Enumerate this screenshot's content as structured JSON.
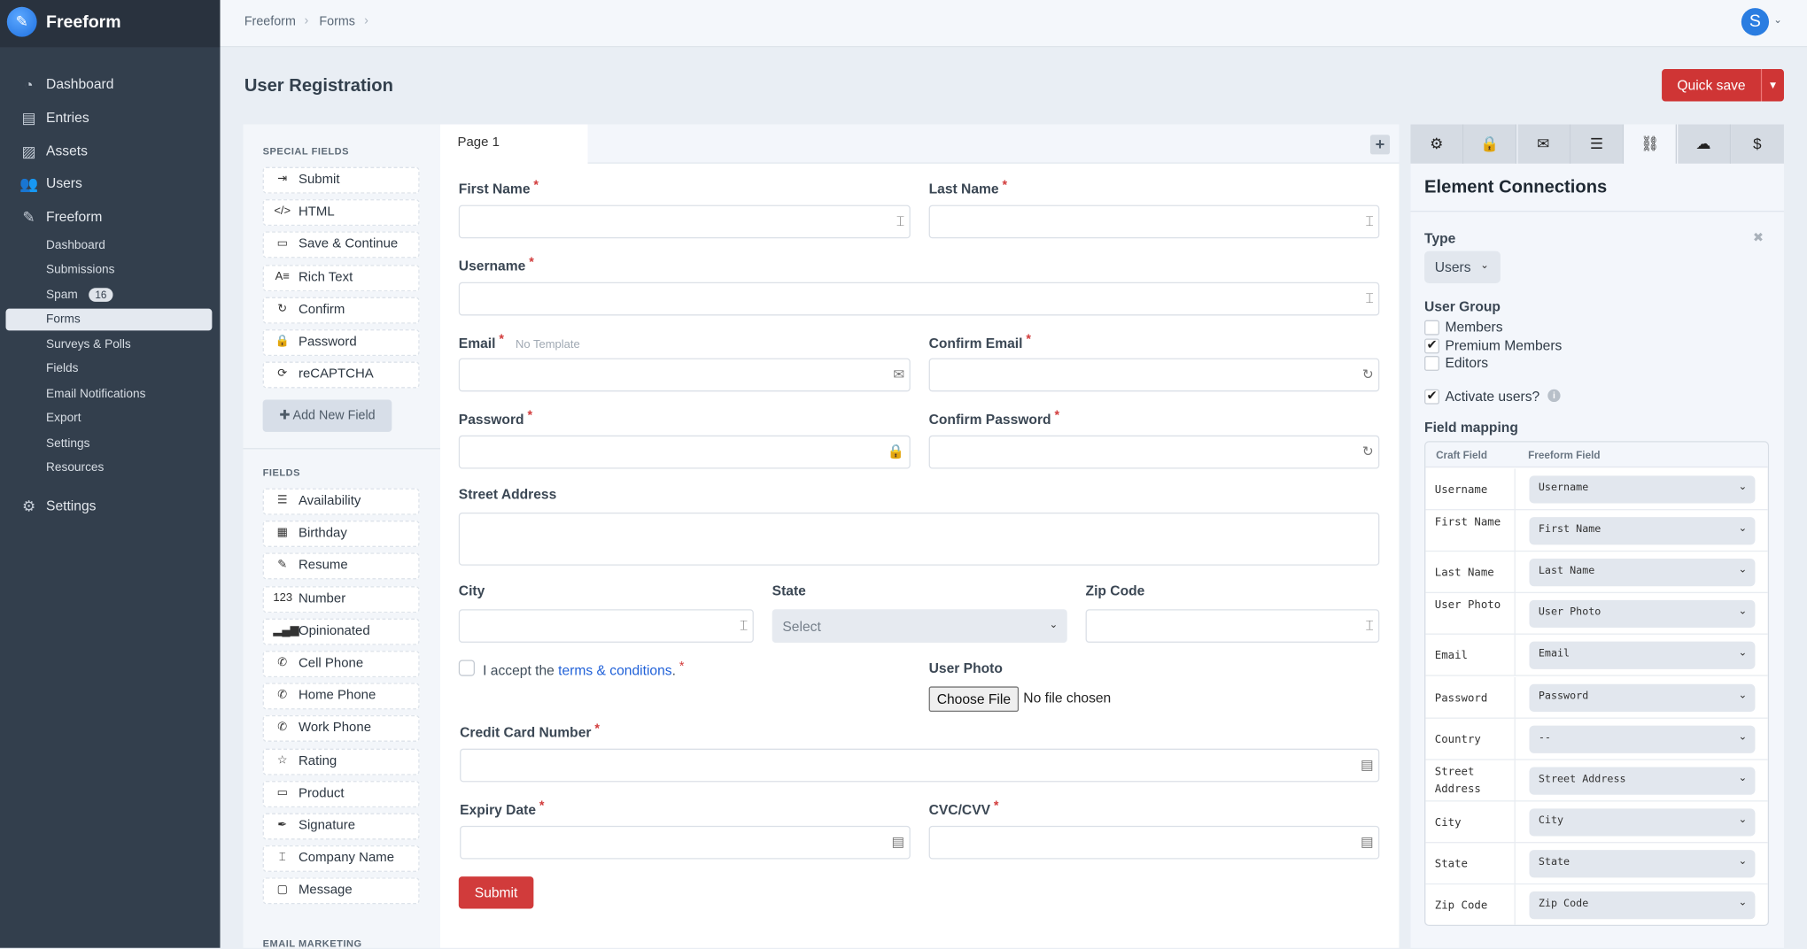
{
  "sidebar": {
    "brand": "Freeform",
    "nav": [
      {
        "label": "Dashboard",
        "icon": "dashboard-icon"
      },
      {
        "label": "Entries",
        "icon": "entries-icon"
      },
      {
        "label": "Assets",
        "icon": "assets-icon"
      },
      {
        "label": "Users",
        "icon": "users-icon"
      },
      {
        "label": "Freeform",
        "icon": "freeform-icon"
      }
    ],
    "sub": [
      "Dashboard",
      "Submissions",
      "Spam",
      "Forms",
      "Surveys & Polls",
      "Fields",
      "Email Notifications",
      "Export",
      "Settings",
      "Resources"
    ],
    "spam_count": "16",
    "active_sub": "Forms",
    "settings": "Settings"
  },
  "topbar": {
    "breadcrumb": [
      "Freeform",
      "Forms"
    ],
    "avatar_letter": "S"
  },
  "header": {
    "title": "User Registration",
    "quick_save": "Quick save"
  },
  "palette": {
    "special_title": "SPECIAL FIELDS",
    "special": [
      {
        "label": "Submit",
        "icon": "submit-icon",
        "glyph": "⇥"
      },
      {
        "label": "HTML",
        "icon": "code-icon",
        "glyph": "</>"
      },
      {
        "label": "Save & Continue",
        "icon": "save-icon",
        "glyph": "▭"
      },
      {
        "label": "Rich Text",
        "icon": "rich-text-icon",
        "glyph": "A≡"
      },
      {
        "label": "Confirm",
        "icon": "confirm-icon",
        "glyph": "↻"
      },
      {
        "label": "Password",
        "icon": "lock-icon",
        "glyph": "🔒"
      },
      {
        "label": "reCAPTCHA",
        "icon": "recaptcha-icon",
        "glyph": "⟳"
      }
    ],
    "add_field": "Add New Field",
    "fields_title": "FIELDS",
    "fields": [
      {
        "label": "Availability",
        "icon": "availability-icon",
        "glyph": "☰"
      },
      {
        "label": "Birthday",
        "icon": "calendar-icon",
        "glyph": "▦"
      },
      {
        "label": "Resume",
        "icon": "file-upload-icon",
        "glyph": "✎"
      },
      {
        "label": "Number",
        "icon": "number-icon",
        "glyph": "123"
      },
      {
        "label": "Opinionated",
        "icon": "bar-chart-icon",
        "glyph": "▂▄▆"
      },
      {
        "label": "Cell Phone",
        "icon": "phone-icon",
        "glyph": "✆"
      },
      {
        "label": "Home Phone",
        "icon": "phone-icon",
        "glyph": "✆"
      },
      {
        "label": "Work Phone",
        "icon": "phone-icon",
        "glyph": "✆"
      },
      {
        "label": "Rating",
        "icon": "star-icon",
        "glyph": "☆"
      },
      {
        "label": "Product",
        "icon": "dropdown-icon",
        "glyph": "▭"
      },
      {
        "label": "Signature",
        "icon": "signature-icon",
        "glyph": "✒"
      },
      {
        "label": "Company Name",
        "icon": "text-field-icon",
        "glyph": "⌶"
      },
      {
        "label": "Message",
        "icon": "textarea-icon",
        "glyph": "▢"
      }
    ],
    "email_marketing_title": "EMAIL MARKETING"
  },
  "form": {
    "page_tab": "Page 1",
    "fields": {
      "first_name": "First Name",
      "last_name": "Last Name",
      "username": "Username",
      "email": "Email",
      "email_hint": "No Template",
      "confirm_email": "Confirm Email",
      "password": "Password",
      "confirm_password": "Confirm Password",
      "street": "Street Address",
      "city": "City",
      "state": "State",
      "state_placeholder": "Select",
      "zip": "Zip Code",
      "terms_pre": "I accept the ",
      "terms_link": "terms & conditions",
      "terms_post": ".",
      "user_photo": "User Photo",
      "choose_file": "Choose File",
      "no_file": "No file chosen",
      "cc_number": "Credit Card Number",
      "expiry": "Expiry Date",
      "cvc": "CVC/CVV"
    },
    "submit": "Submit"
  },
  "right_panel": {
    "tabs": [
      "settings-icon",
      "lock-icon",
      "email-icon",
      "list-icon",
      "link-icon",
      "cloud-upload-icon",
      "dollar-icon"
    ],
    "active_tab": "link-icon",
    "title": "Element Connections",
    "type_label": "Type",
    "type_value": "Users",
    "user_group_label": "User Group",
    "groups": [
      {
        "label": "Members",
        "checked": false
      },
      {
        "label": "Premium Members",
        "checked": true
      },
      {
        "label": "Editors",
        "checked": false
      }
    ],
    "activate_label": "Activate users?",
    "activate_checked": true,
    "mapping_label": "Field mapping",
    "mapping_headers": [
      "Craft Field",
      "Freeform Field"
    ],
    "mapping": [
      {
        "craft": "Username",
        "freeform": "Username"
      },
      {
        "craft": "First Name",
        "freeform": "First Name"
      },
      {
        "craft": "Last Name",
        "freeform": "Last Name"
      },
      {
        "craft": "User Photo",
        "freeform": "User Photo"
      },
      {
        "craft": "Email",
        "freeform": "Email"
      },
      {
        "craft": "Password",
        "freeform": "Password"
      },
      {
        "craft": "Country",
        "freeform": "--"
      },
      {
        "craft": "Street Address",
        "freeform": "Street Address"
      },
      {
        "craft": "City",
        "freeform": "City"
      },
      {
        "craft": "State",
        "freeform": "State"
      },
      {
        "craft": "Zip Code",
        "freeform": "Zip Code"
      }
    ]
  },
  "colors": {
    "sidebar": "#333f4d",
    "accent_red": "#cf3535",
    "link_blue": "#1f60d8",
    "avatar_blue": "#2a7de1"
  }
}
